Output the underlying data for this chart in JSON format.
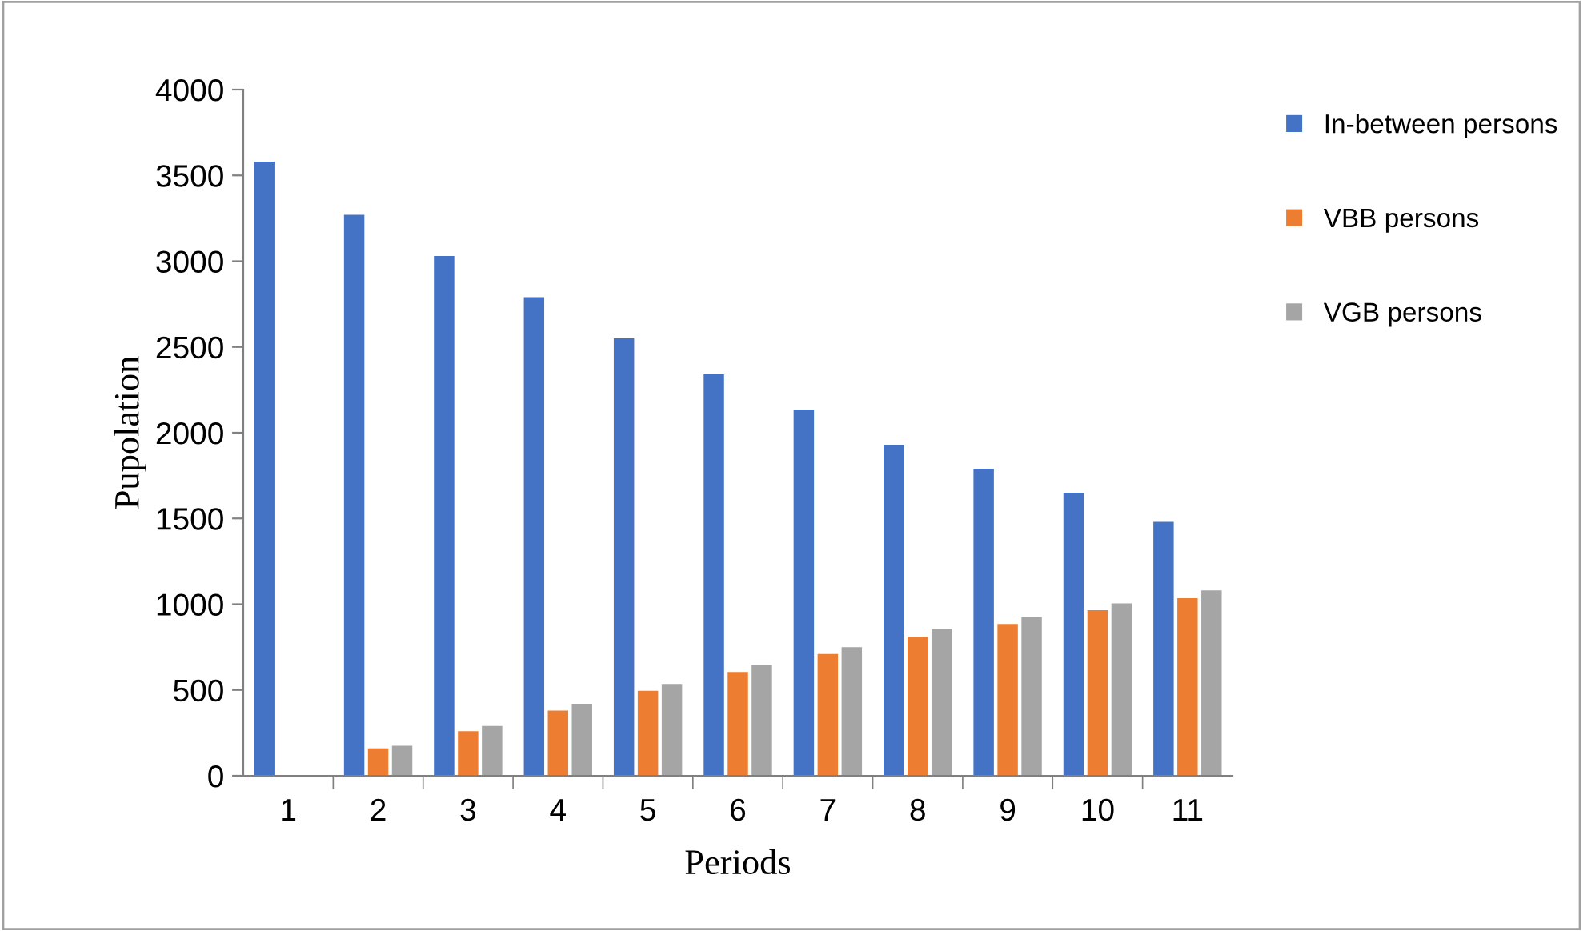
{
  "chart_data": {
    "type": "bar",
    "xlabel": "Periods",
    "ylabel": "Pupolation",
    "categories": [
      "1",
      "2",
      "3",
      "4",
      "5",
      "6",
      "7",
      "8",
      "9",
      "10",
      "11"
    ],
    "series": [
      {
        "name": "In-between persons",
        "color": "#4472c4",
        "values": [
          3580,
          3270,
          3030,
          2790,
          2550,
          2340,
          2135,
          1930,
          1790,
          1650,
          1480
        ]
      },
      {
        "name": "VBB persons",
        "color": "#ed7d31",
        "values": [
          0,
          160,
          260,
          380,
          495,
          605,
          710,
          810,
          885,
          965,
          1035
        ]
      },
      {
        "name": "VGB persons",
        "color": "#a5a5a5",
        "values": [
          0,
          175,
          290,
          420,
          535,
          645,
          750,
          855,
          925,
          1005,
          1080
        ]
      }
    ],
    "ylim": [
      0,
      4000
    ],
    "yticks": [
      0,
      500,
      1000,
      1500,
      2000,
      2500,
      3000,
      3500,
      4000
    ],
    "grid": false,
    "legend": "right"
  }
}
